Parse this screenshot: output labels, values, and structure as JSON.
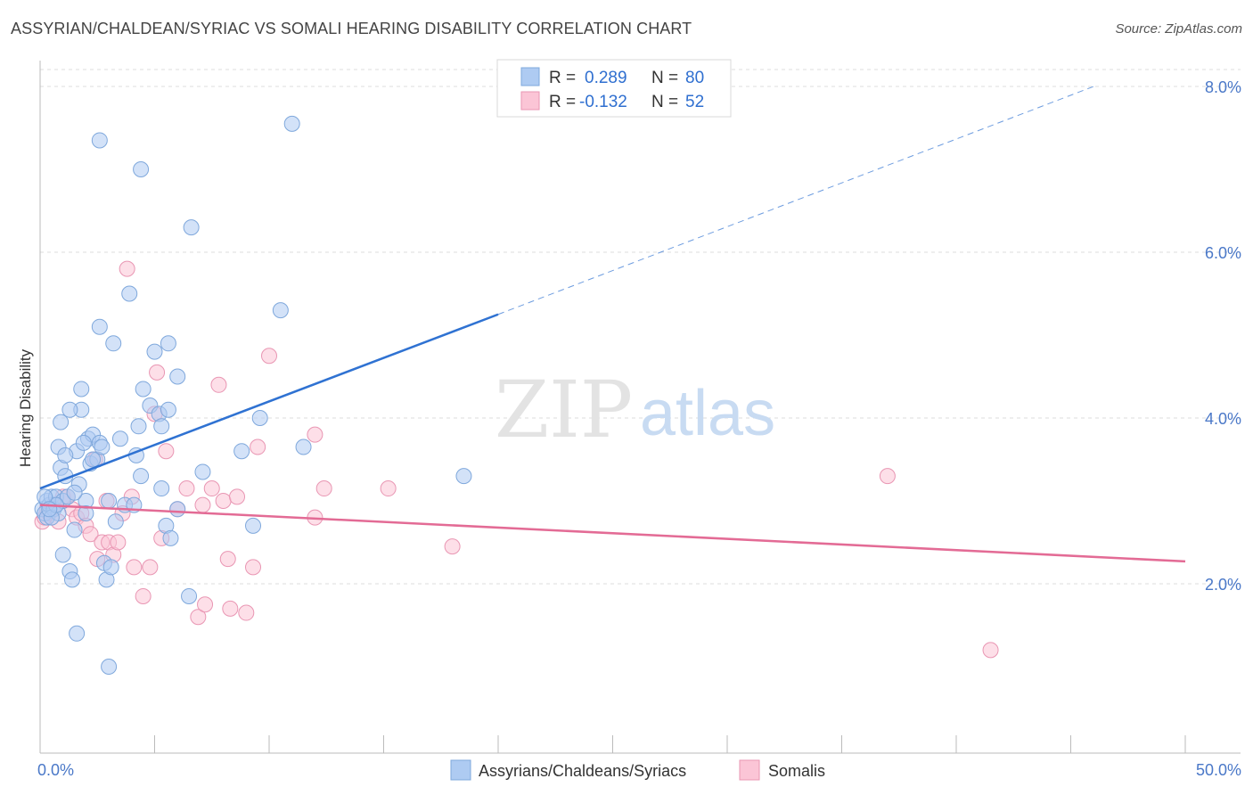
{
  "title": "ASSYRIAN/CHALDEAN/SYRIAC VS SOMALI HEARING DISABILITY CORRELATION CHART",
  "source": "Source: ZipAtlas.com",
  "watermark": {
    "zip": "ZIP",
    "atlas": "atlas"
  },
  "legend_top": {
    "rows": [
      {
        "r_label": "R =",
        "r_value": "0.289",
        "n_label": "N =",
        "n_value": "80"
      },
      {
        "r_label": "R =",
        "r_value": "-0.132",
        "n_label": "N =",
        "n_value": "52"
      }
    ]
  },
  "chart_data": {
    "type": "scatter",
    "title": "ASSYRIAN/CHALDEAN/SYRIAC VS SOMALI HEARING DISABILITY CORRELATION CHART",
    "xlabel": "",
    "ylabel": "Hearing Disability",
    "xlim": [
      0,
      50
    ],
    "ylim": [
      0,
      8.3
    ],
    "x_tick_labels": [
      "0.0%",
      "50.0%"
    ],
    "y_ticks": [
      2,
      4,
      6,
      8
    ],
    "y_tick_labels": [
      "2.0%",
      "4.0%",
      "6.0%",
      "8.0%"
    ],
    "grid": true,
    "legend": "top-center and bottom",
    "series": [
      {
        "name": "Assyrians/Chaldeans/Syriacs",
        "color": "#7fb0ea",
        "r": 0.289,
        "n": 80,
        "trend": {
          "x0": 0,
          "y0": 3.15,
          "x1": 20,
          "y1": 5.25,
          "dashed_to_x": 46,
          "dashed_to_y": 8.0
        },
        "points": [
          [
            0.1,
            2.9
          ],
          [
            0.2,
            2.85
          ],
          [
            0.3,
            3.0
          ],
          [
            0.3,
            2.8
          ],
          [
            0.4,
            2.95
          ],
          [
            0.5,
            3.05
          ],
          [
            0.6,
            2.9
          ],
          [
            0.7,
            3.05
          ],
          [
            0.8,
            2.85
          ],
          [
            0.9,
            3.4
          ],
          [
            1.0,
            3.0
          ],
          [
            1.0,
            2.35
          ],
          [
            1.1,
            3.3
          ],
          [
            1.2,
            3.05
          ],
          [
            1.3,
            2.15
          ],
          [
            1.4,
            2.05
          ],
          [
            1.5,
            2.65
          ],
          [
            1.6,
            3.6
          ],
          [
            1.7,
            3.2
          ],
          [
            1.8,
            4.35
          ],
          [
            1.8,
            4.1
          ],
          [
            2.0,
            3.0
          ],
          [
            2.1,
            3.75
          ],
          [
            2.2,
            3.45
          ],
          [
            2.3,
            3.8
          ],
          [
            2.5,
            3.5
          ],
          [
            2.6,
            3.7
          ],
          [
            2.6,
            7.35
          ],
          [
            2.6,
            5.1
          ],
          [
            2.8,
            2.25
          ],
          [
            2.9,
            2.05
          ],
          [
            3.0,
            1.0
          ],
          [
            3.1,
            2.2
          ],
          [
            3.2,
            4.9
          ],
          [
            3.3,
            2.75
          ],
          [
            3.5,
            3.75
          ],
          [
            3.7,
            2.95
          ],
          [
            3.9,
            5.5
          ],
          [
            4.1,
            2.95
          ],
          [
            4.2,
            3.55
          ],
          [
            4.3,
            3.9
          ],
          [
            4.4,
            7.0
          ],
          [
            4.4,
            3.3
          ],
          [
            4.5,
            4.35
          ],
          [
            4.8,
            4.15
          ],
          [
            5.0,
            4.8
          ],
          [
            5.2,
            4.05
          ],
          [
            5.3,
            3.9
          ],
          [
            5.3,
            3.15
          ],
          [
            5.5,
            2.7
          ],
          [
            5.6,
            4.9
          ],
          [
            5.6,
            4.1
          ],
          [
            5.7,
            2.55
          ],
          [
            6.0,
            4.5
          ],
          [
            6.0,
            2.9
          ],
          [
            6.5,
            1.85
          ],
          [
            6.6,
            6.3
          ],
          [
            7.1,
            3.35
          ],
          [
            8.8,
            3.6
          ],
          [
            9.3,
            2.7
          ],
          [
            9.6,
            4.0
          ],
          [
            10.5,
            5.3
          ],
          [
            11.0,
            7.55
          ],
          [
            11.5,
            3.65
          ],
          [
            18.5,
            3.3
          ],
          [
            0.8,
            3.65
          ],
          [
            0.9,
            3.95
          ],
          [
            1.1,
            3.55
          ],
          [
            1.3,
            4.1
          ],
          [
            1.6,
            1.4
          ],
          [
            2.3,
            3.5
          ],
          [
            3.0,
            3.0
          ],
          [
            0.5,
            2.8
          ],
          [
            0.7,
            2.95
          ],
          [
            1.9,
            3.7
          ],
          [
            2.7,
            3.65
          ],
          [
            0.2,
            3.05
          ],
          [
            0.4,
            2.9
          ],
          [
            1.5,
            3.1
          ],
          [
            2.0,
            2.85
          ]
        ]
      },
      {
        "name": "Somalis",
        "color": "#f5a6bf",
        "r": -0.132,
        "n": 52,
        "trend": {
          "x0": 0,
          "y0": 2.95,
          "x1": 50,
          "y1": 2.27
        },
        "points": [
          [
            0.1,
            2.75
          ],
          [
            0.2,
            2.8
          ],
          [
            0.3,
            2.9
          ],
          [
            0.4,
            2.85
          ],
          [
            0.6,
            2.95
          ],
          [
            0.8,
            2.75
          ],
          [
            1.0,
            3.05
          ],
          [
            1.2,
            3.05
          ],
          [
            1.4,
            2.9
          ],
          [
            1.6,
            2.8
          ],
          [
            1.8,
            2.85
          ],
          [
            2.0,
            2.7
          ],
          [
            2.2,
            2.6
          ],
          [
            2.4,
            3.5
          ],
          [
            2.5,
            2.3
          ],
          [
            2.7,
            2.5
          ],
          [
            2.9,
            3.0
          ],
          [
            3.0,
            2.5
          ],
          [
            3.2,
            2.35
          ],
          [
            3.4,
            2.5
          ],
          [
            3.6,
            2.85
          ],
          [
            3.8,
            5.8
          ],
          [
            4.0,
            3.05
          ],
          [
            4.1,
            2.2
          ],
          [
            4.5,
            1.85
          ],
          [
            4.8,
            2.2
          ],
          [
            5.0,
            4.05
          ],
          [
            5.1,
            4.55
          ],
          [
            5.3,
            2.55
          ],
          [
            5.5,
            3.6
          ],
          [
            6.0,
            2.9
          ],
          [
            6.4,
            3.15
          ],
          [
            6.9,
            1.6
          ],
          [
            7.1,
            2.95
          ],
          [
            7.2,
            1.75
          ],
          [
            7.5,
            3.15
          ],
          [
            7.8,
            4.4
          ],
          [
            8.0,
            3.0
          ],
          [
            8.2,
            2.3
          ],
          [
            8.3,
            1.7
          ],
          [
            8.6,
            3.05
          ],
          [
            9.0,
            1.65
          ],
          [
            9.3,
            2.2
          ],
          [
            9.5,
            3.65
          ],
          [
            10.0,
            4.75
          ],
          [
            12.0,
            3.8
          ],
          [
            12.0,
            2.8
          ],
          [
            12.4,
            3.15
          ],
          [
            15.2,
            3.15
          ],
          [
            18.0,
            2.45
          ],
          [
            37.0,
            3.3
          ],
          [
            41.5,
            1.2
          ]
        ]
      }
    ]
  },
  "legend_bottom": {
    "items": [
      {
        "label": "Assyrians/Chaldeans/Syriacs",
        "color": "#aecbf2"
      },
      {
        "label": "Somalis",
        "color": "#fbc5d6"
      }
    ]
  },
  "colors": {
    "blue_point_fill": "#aecbf2",
    "blue_point_stroke": "#7fa8dc",
    "blue_line": "#2f72d2",
    "pink_point_fill": "#fbc5d6",
    "pink_point_stroke": "#e996b3",
    "pink_line": "#e36b95",
    "grid": "#dddddd",
    "tick_text": "#4a78c8"
  }
}
